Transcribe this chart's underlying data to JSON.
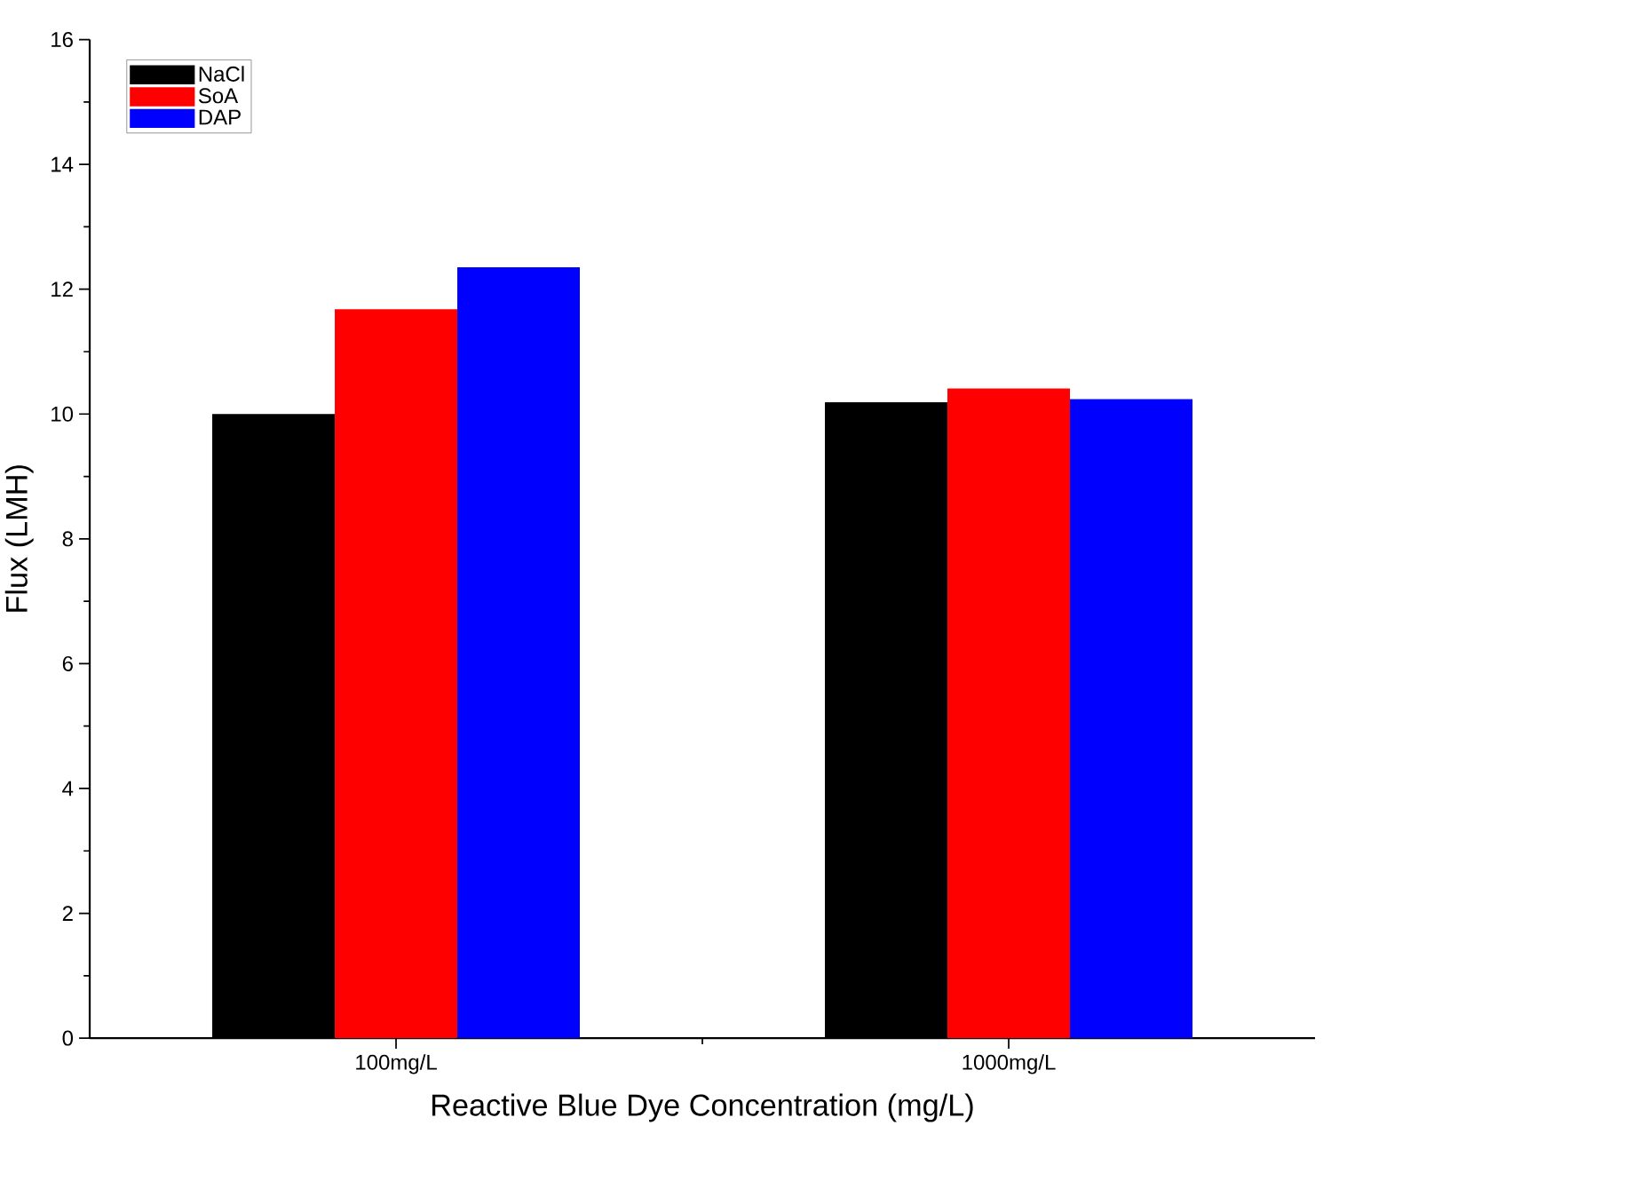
{
  "chart_data": {
    "type": "bar",
    "xlabel": "Reactive Blue Dye Concentration (mg/L)",
    "ylabel": "Flux (LMH)",
    "categories": [
      "100mg/L",
      "1000mg/L"
    ],
    "series": [
      {
        "name": "NaCl",
        "color": "#000000",
        "values": [
          10.0,
          10.19
        ]
      },
      {
        "name": "SoA",
        "color": "#ff0000",
        "values": [
          11.68,
          10.41
        ]
      },
      {
        "name": "DAP",
        "color": "#0000ff",
        "values": [
          12.35,
          10.24
        ]
      }
    ],
    "ylim": [
      0,
      16
    ],
    "yticks": [
      0,
      2,
      4,
      6,
      8,
      10,
      12,
      14,
      16
    ],
    "legend": "top left",
    "grid": false
  }
}
